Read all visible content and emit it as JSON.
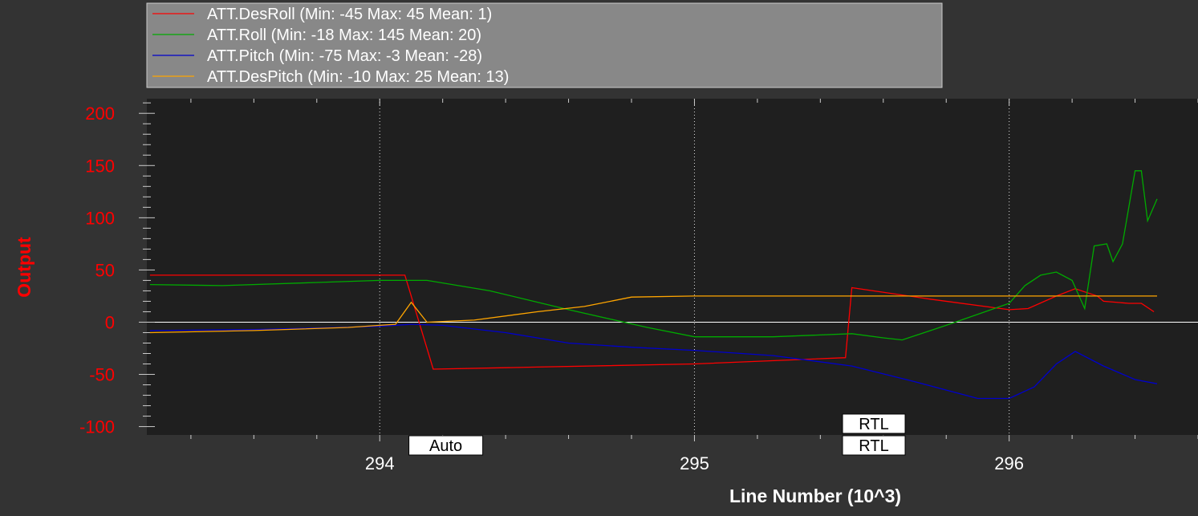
{
  "chart_data": {
    "type": "line",
    "xlabel": "Line Number (10^3)",
    "ylabel": "Output",
    "xlim": [
      293.26,
      296.6
    ],
    "ylim": [
      -108,
      214
    ],
    "x_ticks": [
      294,
      295,
      296
    ],
    "x_tick_labels": [
      "294",
      "295",
      "296"
    ],
    "y_ticks": [
      -100,
      -50,
      0,
      50,
      100,
      150,
      200
    ],
    "y_tick_labels": [
      "-100",
      "-50",
      "0",
      "50",
      "100",
      "150",
      "200"
    ],
    "grid": "vertical dotted at major x ticks, solid zero line",
    "legend_position": "top",
    "series": [
      {
        "name": "ATT.DesRoll (Min: -45 Max: 45 Mean: 1)",
        "color": "#ff0000",
        "x": [
          293.27,
          294.08,
          294.17,
          294.5,
          295.0,
          295.48,
          295.5,
          295.75,
          296.0,
          296.06,
          296.15,
          296.21,
          296.28,
          296.3,
          296.38,
          296.42,
          296.46
        ],
        "y": [
          45,
          45,
          -45,
          -43,
          -40,
          -34,
          33,
          22,
          12,
          13,
          25,
          32,
          25,
          20,
          18,
          18,
          10
        ]
      },
      {
        "name": "ATT.Roll (Min: -18 Max: 145 Mean: 20)",
        "color": "#00aa00",
        "x": [
          293.27,
          293.5,
          293.8,
          294.0,
          294.15,
          294.35,
          294.6,
          294.85,
          295.0,
          295.25,
          295.5,
          295.6,
          295.66,
          295.8,
          296.0,
          296.05,
          296.1,
          296.15,
          296.2,
          296.24,
          296.27,
          296.31,
          296.33,
          296.36,
          296.4,
          296.42,
          296.44,
          296.47
        ],
        "y": [
          36,
          35,
          38,
          40,
          40,
          30,
          12,
          -5,
          -14,
          -14,
          -11,
          -15,
          -17,
          -3,
          18,
          35,
          45,
          48,
          40,
          13,
          73,
          75,
          58,
          75,
          145,
          145,
          97,
          118
        ]
      },
      {
        "name": "ATT.Pitch (Min: -75 Max: -3 Mean: -28)",
        "color": "#0000cc",
        "x": [
          293.27,
          293.6,
          294.0,
          294.1,
          294.2,
          294.4,
          294.6,
          294.8,
          295.0,
          295.25,
          295.5,
          295.7,
          295.9,
          296.0,
          296.08,
          296.15,
          296.21,
          296.3,
          296.4,
          296.47
        ],
        "y": [
          -8,
          -7,
          -4,
          -2,
          -3,
          -10,
          -20,
          -24,
          -27,
          -32,
          -42,
          -57,
          -73,
          -73,
          -62,
          -40,
          -28,
          -42,
          -55,
          -59
        ]
      },
      {
        "name": "ATT.DesPitch (Min: -10 Max: 25 Mean: 13)",
        "color": "#ffa500",
        "x": [
          293.27,
          293.6,
          293.9,
          294.05,
          294.1,
          294.15,
          294.3,
          294.5,
          294.65,
          294.8,
          295.0,
          295.5,
          296.0,
          296.47
        ],
        "y": [
          -10,
          -8,
          -5,
          -2,
          19,
          0,
          2,
          10,
          15,
          24,
          25,
          25,
          25,
          25
        ]
      }
    ],
    "annotations": [
      {
        "text": "Auto",
        "x": 294.21,
        "row": "lower"
      },
      {
        "text": "RTL",
        "x": 295.57,
        "row": "upper"
      },
      {
        "text": "RTL",
        "x": 295.57,
        "row": "lower"
      }
    ]
  }
}
